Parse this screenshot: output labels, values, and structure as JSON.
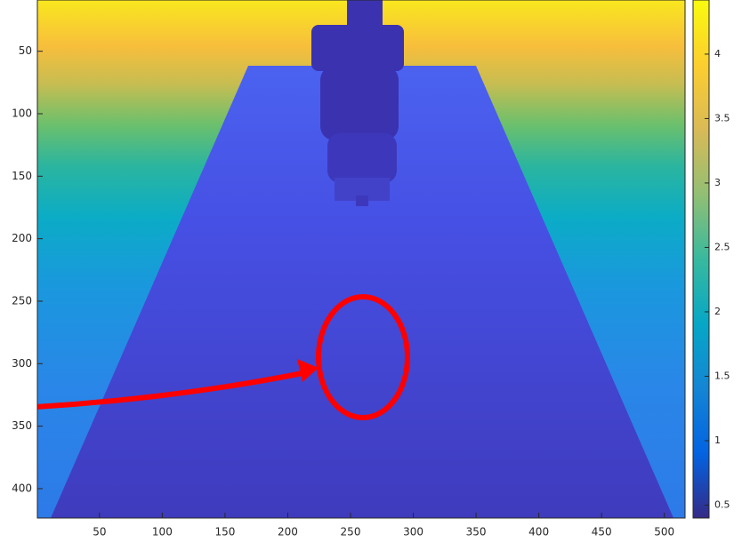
{
  "chart_data": {
    "type": "image",
    "xlim": [
      0.5,
      516.5
    ],
    "ylim": [
      9,
      423.5
    ],
    "xticks": [
      50,
      100,
      150,
      200,
      250,
      300,
      350,
      400,
      450,
      500
    ],
    "yticks": [
      50,
      100,
      150,
      200,
      250,
      300,
      350,
      400
    ],
    "colorbar": {
      "clim": [
        0.4,
        4.42
      ],
      "ticks": [
        0.5,
        1,
        1.5,
        2,
        2.5,
        3,
        3.5,
        4
      ]
    }
  }
}
